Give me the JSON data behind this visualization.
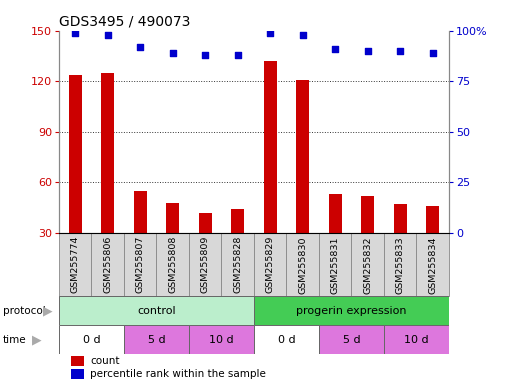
{
  "title": "GDS3495 / 490073",
  "samples": [
    "GSM255774",
    "GSM255806",
    "GSM255807",
    "GSM255808",
    "GSM255809",
    "GSM255828",
    "GSM255829",
    "GSM255830",
    "GSM255831",
    "GSM255832",
    "GSM255833",
    "GSM255834"
  ],
  "counts": [
    124,
    125,
    55,
    48,
    42,
    44,
    132,
    121,
    53,
    52,
    47,
    46
  ],
  "percentile_ranks": [
    99,
    98,
    92,
    89,
    88,
    88,
    99,
    98,
    91,
    90,
    90,
    89
  ],
  "bar_color": "#cc0000",
  "dot_color": "#0000cc",
  "ylim_left": [
    30,
    150
  ],
  "ylim_right": [
    0,
    100
  ],
  "yticks_left": [
    30,
    60,
    90,
    120,
    150
  ],
  "yticks_right": [
    0,
    25,
    50,
    75,
    100
  ],
  "ytick_labels_right": [
    "0",
    "25",
    "50",
    "75",
    "100%"
  ],
  "protocol_groups": [
    {
      "label": "control",
      "start": 0,
      "end": 6,
      "color": "#bbeecc"
    },
    {
      "label": "progerin expression",
      "start": 6,
      "end": 12,
      "color": "#44cc55"
    }
  ],
  "time_groups": [
    {
      "label": "0 d",
      "start": 0,
      "end": 2,
      "color": "#ffffff"
    },
    {
      "label": "5 d",
      "start": 2,
      "end": 4,
      "color": "#dd77dd"
    },
    {
      "label": "10 d",
      "start": 4,
      "end": 6,
      "color": "#dd77dd"
    },
    {
      "label": "0 d",
      "start": 6,
      "end": 8,
      "color": "#ffffff"
    },
    {
      "label": "5 d",
      "start": 8,
      "end": 10,
      "color": "#dd77dd"
    },
    {
      "label": "10 d",
      "start": 10,
      "end": 12,
      "color": "#dd77dd"
    }
  ],
  "legend_count_color": "#cc0000",
  "legend_pct_color": "#0000cc",
  "background_color": "#ffffff",
  "tick_label_color_left": "#cc0000",
  "tick_label_color_right": "#0000cc",
  "grid_color": "#333333",
  "sample_box_color": "#d8d8d8",
  "sample_box_border": "#888888",
  "bar_width": 0.4
}
